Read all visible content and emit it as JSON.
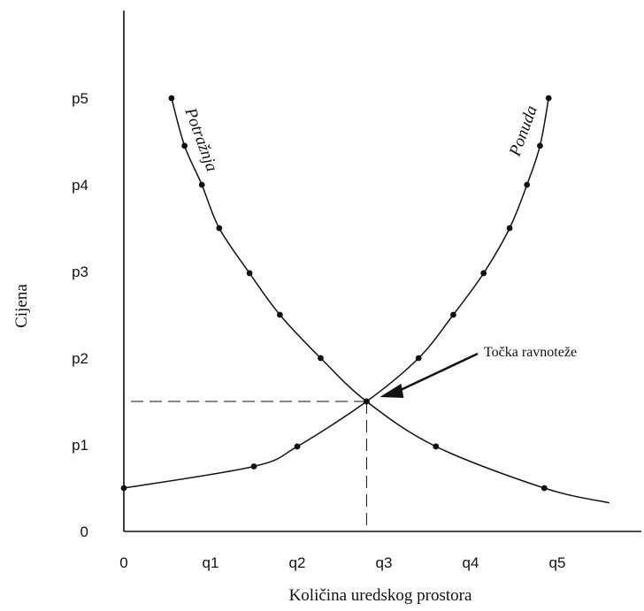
{
  "chart_data": {
    "type": "line",
    "title": "",
    "xlabel": "Količina uredskog prostora",
    "ylabel": "Cijena",
    "x_ticks": [
      "0",
      "q1",
      "q2",
      "q3",
      "q4",
      "q5"
    ],
    "y_ticks": [
      "0",
      "p1",
      "p2",
      "p3",
      "p4",
      "p5"
    ],
    "xlim": [
      0,
      5.8
    ],
    "ylim": [
      0,
      5.6
    ],
    "grid": false,
    "series": [
      {
        "name": "Potražnja",
        "color": "#111111",
        "points": [
          {
            "x": 0.55,
            "y": 5.0
          },
          {
            "x": 0.7,
            "y": 4.45
          },
          {
            "x": 0.9,
            "y": 4.0
          },
          {
            "x": 1.1,
            "y": 3.5
          },
          {
            "x": 1.45,
            "y": 2.98
          },
          {
            "x": 1.8,
            "y": 2.5
          },
          {
            "x": 2.27,
            "y": 2.0
          },
          {
            "x": 2.8,
            "y": 1.5
          },
          {
            "x": 3.6,
            "y": 0.98
          },
          {
            "x": 4.85,
            "y": 0.5
          }
        ],
        "curve_end": {
          "x": 5.6,
          "y": 0.33
        }
      },
      {
        "name": "Ponuda",
        "color": "#111111",
        "points": [
          {
            "x": 0.0,
            "y": 0.5
          },
          {
            "x": 1.5,
            "y": 0.75
          },
          {
            "x": 2.0,
            "y": 0.98
          },
          {
            "x": 2.8,
            "y": 1.5
          },
          {
            "x": 3.4,
            "y": 2.0
          },
          {
            "x": 3.8,
            "y": 2.5
          },
          {
            "x": 4.15,
            "y": 2.98
          },
          {
            "x": 4.45,
            "y": 3.5
          },
          {
            "x": 4.65,
            "y": 4.0
          },
          {
            "x": 4.8,
            "y": 4.45
          },
          {
            "x": 4.9,
            "y": 5.0
          }
        ]
      }
    ],
    "equilibrium": {
      "x": 2.8,
      "y": 1.5,
      "label": "Točka ravnoteže"
    }
  }
}
